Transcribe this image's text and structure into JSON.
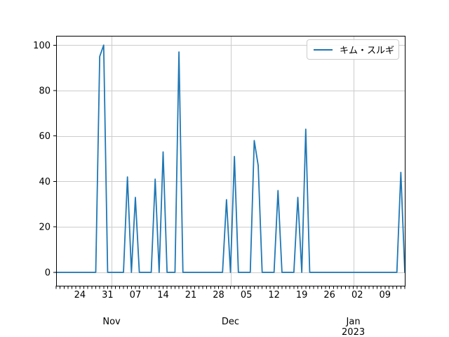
{
  "chart_data": {
    "type": "line",
    "title": "",
    "xlabel": "",
    "ylabel": "",
    "grid": "major",
    "background": "#ffffff",
    "grid_color": "#cccccc",
    "spine_color": "#000000",
    "ylim": [
      -5.9,
      104.1
    ],
    "yticks": [
      0,
      20,
      40,
      60,
      80,
      100
    ],
    "x_start": "2022-10-18",
    "x_end": "2023-01-14",
    "x_freq": "daily",
    "x_week_ticks": [
      {
        "day": 6,
        "label": "24"
      },
      {
        "day": 13,
        "label": "31"
      },
      {
        "day": 20,
        "label": "07"
      },
      {
        "day": 27,
        "label": "14"
      },
      {
        "day": 34,
        "label": "21"
      },
      {
        "day": 41,
        "label": "28"
      },
      {
        "day": 48,
        "label": "05"
      },
      {
        "day": 55,
        "label": "12"
      },
      {
        "day": 62,
        "label": "19"
      },
      {
        "day": 69,
        "label": "26"
      },
      {
        "day": 76,
        "label": "02"
      },
      {
        "day": 83,
        "label": "09"
      }
    ],
    "x_month_ticks": [
      {
        "day": 14,
        "label": "Nov",
        "year": ""
      },
      {
        "day": 44,
        "label": "Dec",
        "year": ""
      },
      {
        "day": 75,
        "label": "Jan",
        "year": "2023"
      }
    ],
    "legend": {
      "position": "upper right"
    },
    "series": [
      {
        "name": "キム・スルギ",
        "color": "#1f77b4",
        "values": [
          0,
          0,
          0,
          0,
          0,
          0,
          0,
          0,
          0,
          0,
          0,
          95,
          100,
          0,
          0,
          0,
          0,
          0,
          42,
          0,
          33,
          0,
          0,
          0,
          0,
          41,
          0,
          53,
          0,
          0,
          0,
          97,
          0,
          0,
          0,
          0,
          0,
          0,
          0,
          0,
          0,
          0,
          0,
          32,
          0,
          51,
          0,
          0,
          0,
          0,
          58,
          47,
          0,
          0,
          0,
          0,
          36,
          0,
          0,
          0,
          0,
          33,
          0,
          63,
          0,
          0,
          0,
          0,
          0,
          0,
          0,
          0,
          0,
          0,
          0,
          0,
          0,
          0,
          0,
          0,
          0,
          0,
          0,
          0,
          0,
          0,
          0,
          44,
          0
        ]
      }
    ],
    "notable_points": [
      {
        "date": "2022-10-29",
        "value": 95
      },
      {
        "date": "2022-10-30",
        "value": 100
      },
      {
        "date": "2022-11-05",
        "value": 42
      },
      {
        "date": "2022-11-07",
        "value": 33
      },
      {
        "date": "2022-11-12",
        "value": 41
      },
      {
        "date": "2022-11-14",
        "value": 53
      },
      {
        "date": "2022-11-18",
        "value": 97
      },
      {
        "date": "2022-11-30",
        "value": 32
      },
      {
        "date": "2022-12-02",
        "value": 51
      },
      {
        "date": "2022-12-07",
        "value": 58
      },
      {
        "date": "2022-12-08",
        "value": 47
      },
      {
        "date": "2022-12-13",
        "value": 36
      },
      {
        "date": "2022-12-18",
        "value": 33
      },
      {
        "date": "2022-12-20",
        "value": 63
      },
      {
        "date": "2023-01-13",
        "value": 44
      }
    ]
  }
}
